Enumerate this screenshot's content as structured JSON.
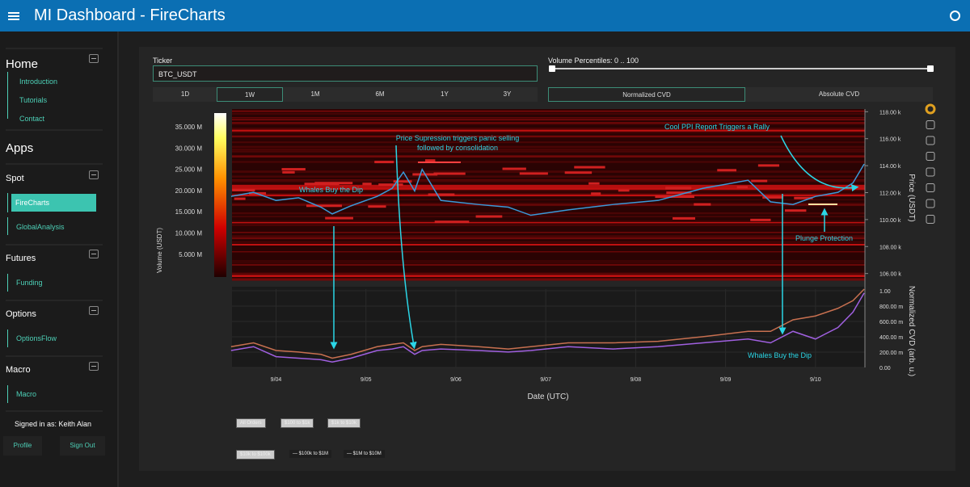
{
  "header": {
    "title": "MI Dashboard  -  FireCharts",
    "menu_icon": "hamburger-icon",
    "status_icon": "circle-icon"
  },
  "sidebar": {
    "home": {
      "label": "Home",
      "items": [
        "Introduction",
        "Tutorials",
        "Contact"
      ]
    },
    "apps_label": "Apps",
    "groups": [
      {
        "label": "Spot",
        "items": [
          "FireCharts",
          "GlobalAnalysis"
        ]
      },
      {
        "label": "Futures",
        "items": [
          "Funding"
        ]
      },
      {
        "label": "Options",
        "items": [
          "OptionsFlow"
        ]
      },
      {
        "label": "Macro",
        "items": [
          "Macro"
        ]
      }
    ],
    "active_item": "FireCharts",
    "signed_in": "Signed in as: Keith Alan",
    "profile": "Profile",
    "sign_out": "Sign Out"
  },
  "controls": {
    "ticker_label": "Ticker",
    "ticker_value": "BTC_USDT",
    "timeframes": [
      "1D",
      "1W",
      "1M",
      "6M",
      "1Y",
      "3Y"
    ],
    "selected_timeframe": "1W",
    "volume_label": "Volume Percentiles: 0 .. 100",
    "volume_range": [
      0,
      100
    ],
    "cvd_modes": [
      "Normalized CVD",
      "Absolute CVD"
    ],
    "selected_cvd": "Normalized CVD"
  },
  "colors": {
    "accent": "#3cc4b0",
    "header": "#0b6fb3",
    "price": "#3a9ad9",
    "cvd_purple": "#a060e0",
    "cvd_orange": "#c87050",
    "annotation": "#2bd6e6"
  },
  "chart_data": {
    "type": "line",
    "xlabel": "Date (UTC)",
    "x_ticks": [
      "9/04",
      "9/05",
      "9/06",
      "9/07",
      "9/08",
      "9/09",
      "9/10"
    ],
    "price_axis": {
      "label": "Price (USDT)",
      "ticks": [
        "118.00 k",
        "116.00 k",
        "114.00 k",
        "112.00 k",
        "110.00 k",
        "108.00 k",
        "106.00 k"
      ],
      "range": [
        105.5,
        118.2
      ]
    },
    "volume_colorbar": {
      "label": "Volume (USDT)",
      "ticks": [
        "35.000 M",
        "30.000 M",
        "25.000 M",
        "20.000 M",
        "15.000 M",
        "10.000 M",
        "5.000 M"
      ]
    },
    "cvd_axis": {
      "label": "Normalized CVD (arb. u.)",
      "ticks": [
        "1.00",
        "800.00 m",
        "600.00 m",
        "400.00 m",
        "200.00 m",
        "0.00"
      ],
      "range": [
        0,
        1
      ]
    },
    "price_series": {
      "x": [
        "9/03 12:00",
        "9/03 18:00",
        "9/04 00:00",
        "9/04 06:00",
        "9/04 12:00",
        "9/04 15:00",
        "9/04 20:00",
        "9/05 03:00",
        "9/05 07:00",
        "9/05 10:00",
        "9/05 13:00",
        "9/05 15:00",
        "9/05 20:00",
        "9/06 06:00",
        "9/06 14:00",
        "9/06 20:00",
        "9/07 06:00",
        "9/07 18:00",
        "9/08 06:00",
        "9/08 18:00",
        "9/09 06:00",
        "9/09 12:00",
        "9/09 18:00",
        "9/10 00:00",
        "9/10 06:00",
        "9/10 10:00",
        "9/10 13:00"
      ],
      "y": [
        111.6,
        111.9,
        111.3,
        111.5,
        110.8,
        110.3,
        110.9,
        111.6,
        112.2,
        113.4,
        112.0,
        113.6,
        111.3,
        111.0,
        110.8,
        110.2,
        110.6,
        111.0,
        111.3,
        112.2,
        112.8,
        111.2,
        111.0,
        111.6,
        111.9,
        112.6,
        114.0
      ]
    },
    "cvd_series": [
      {
        "name": "$100k to $1M",
        "color": "#a060e0",
        "y": [
          0.2,
          0.25,
          0.12,
          0.1,
          0.08,
          0.05,
          0.1,
          0.2,
          0.22,
          0.25,
          0.15,
          0.2,
          0.22,
          0.2,
          0.18,
          0.2,
          0.25,
          0.22,
          0.25,
          0.3,
          0.35,
          0.3,
          0.45,
          0.35,
          0.5,
          0.7,
          0.95
        ]
      },
      {
        "name": "$1M to $10M",
        "color": "#c87050",
        "y": [
          0.25,
          0.3,
          0.2,
          0.18,
          0.15,
          0.1,
          0.15,
          0.25,
          0.28,
          0.3,
          0.2,
          0.25,
          0.28,
          0.25,
          0.22,
          0.25,
          0.3,
          0.3,
          0.32,
          0.38,
          0.45,
          0.45,
          0.6,
          0.65,
          0.75,
          0.85,
          1.0
        ]
      }
    ],
    "legend": [
      "All Orders",
      "$100 to $1k",
      "$1k to $10k",
      "$10k to $100k",
      "$100k to $1M",
      "$1M to $10M"
    ],
    "annotations": [
      "Whales Buy the Dip",
      "Price Supression triggers panic selling",
      "followed by consolidation",
      "Cool PPI Report Triggers a Rally",
      "Plunge Protection",
      "Whales Buy the Dip"
    ],
    "toolbar_icons": [
      "logo-icon",
      "pan-icon",
      "box-zoom-icon",
      "wheel-zoom-icon",
      "reset-icon",
      "save-icon",
      "hover-icon",
      "crosshair-icon"
    ]
  }
}
